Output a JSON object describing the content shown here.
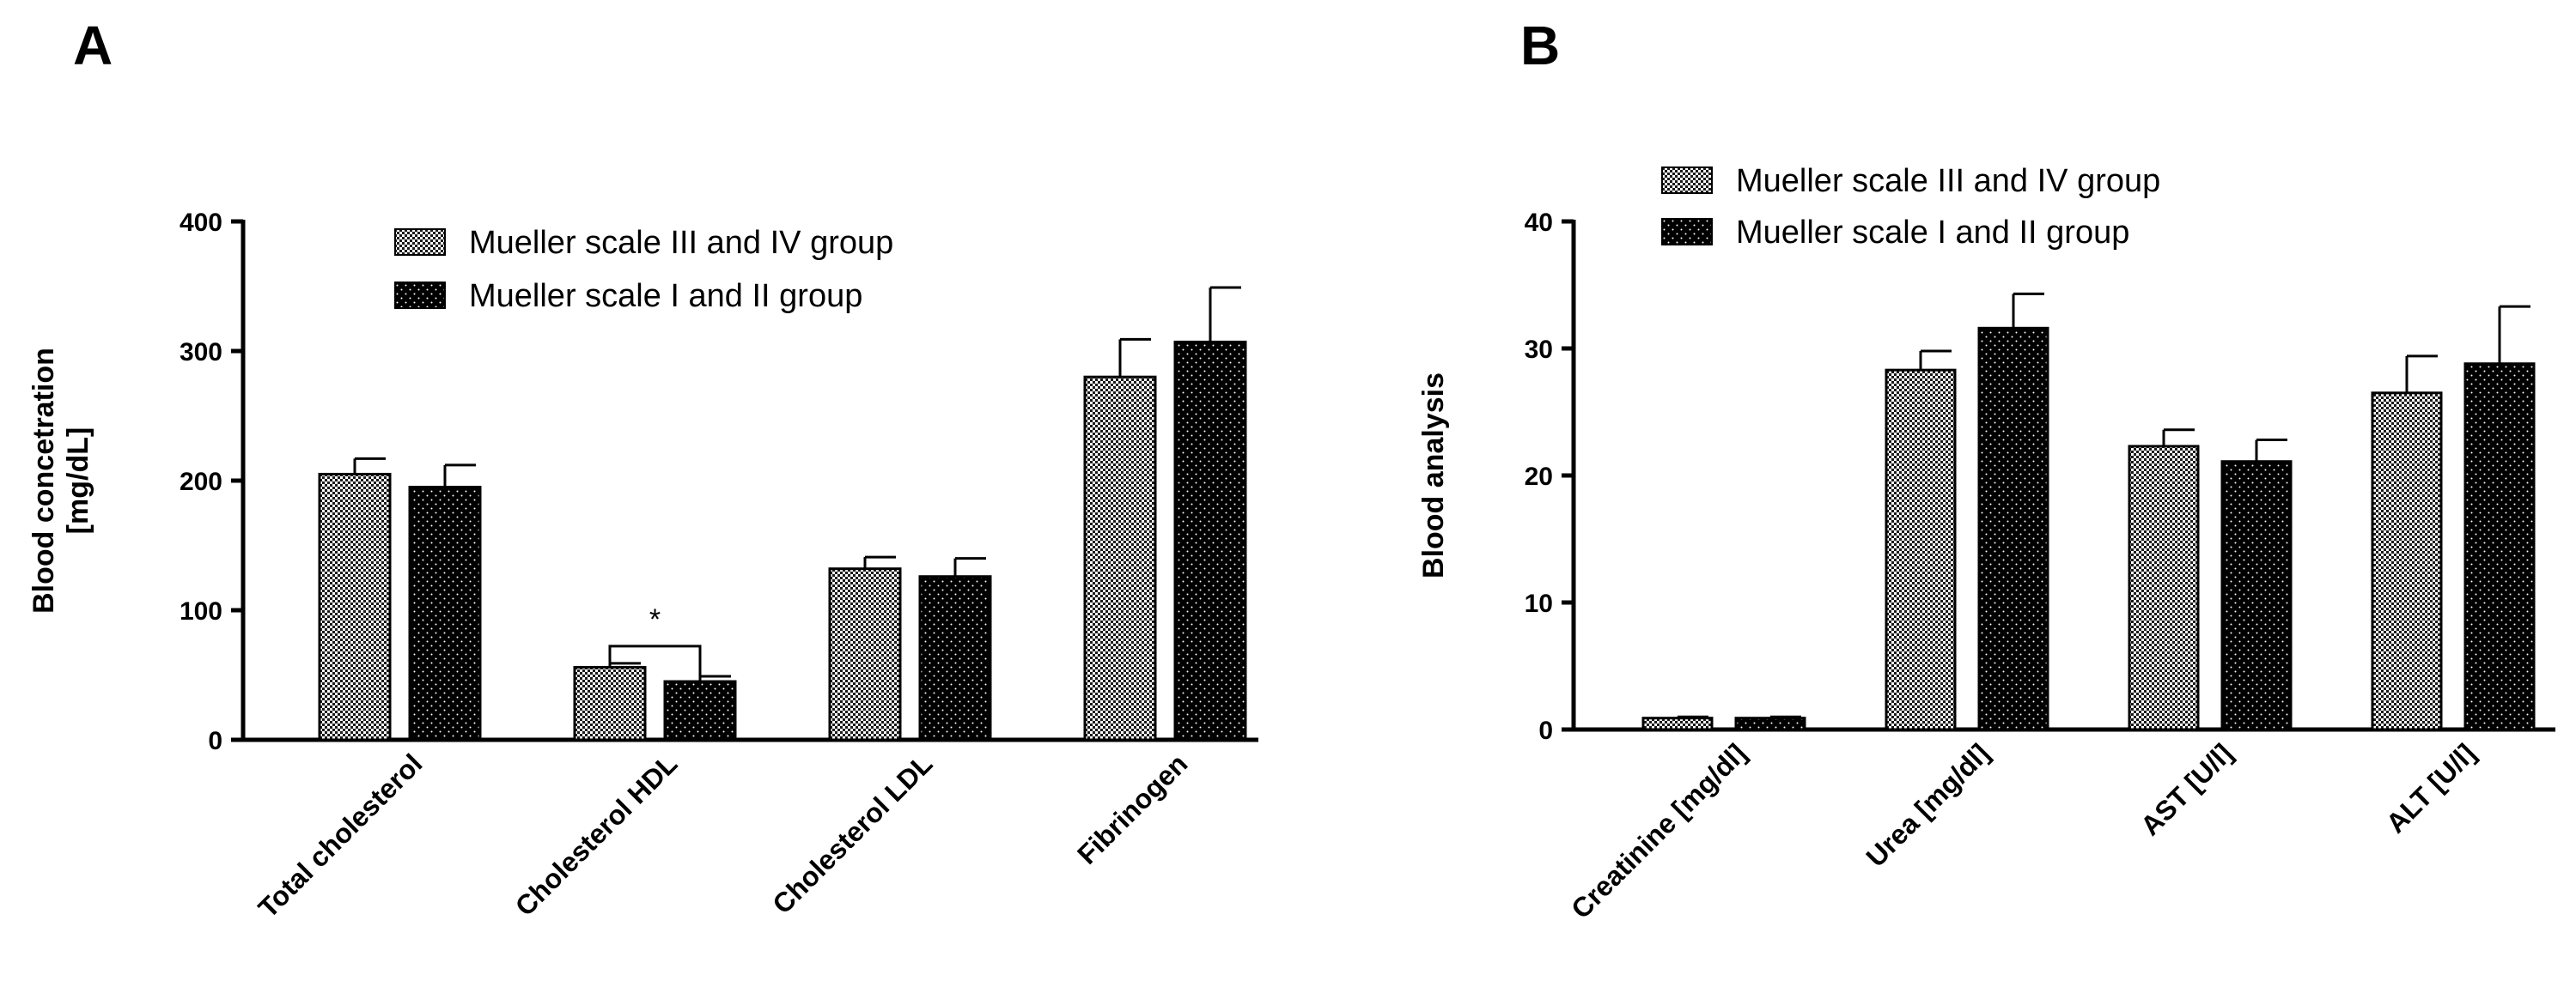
{
  "figure": {
    "panel_a_letter": "A",
    "panel_b_letter": "B"
  },
  "chart_data": [
    {
      "type": "bar",
      "panel": "A",
      "title": "",
      "xlabel": "",
      "ylabel_lines": [
        "Blood concetration",
        "[mg/dL]"
      ],
      "categories": [
        "Total cholesterol",
        "Cholesterol HDL",
        "Cholesterol LDL",
        "Fibrinogen"
      ],
      "ylim": [
        0,
        400
      ],
      "yticks": [
        0,
        100,
        200,
        300,
        400
      ],
      "legend_position": "top-center",
      "series": [
        {
          "name": "Mueller scale III and IV group",
          "pattern": "checker",
          "values": [
            205,
            56,
            132,
            280
          ],
          "errors": [
            12,
            3,
            9,
            29
          ]
        },
        {
          "name": "Mueller scale I and II group",
          "pattern": "dots",
          "values": [
            195,
            45,
            126,
            307
          ],
          "errors": [
            17,
            4,
            14,
            42
          ]
        }
      ],
      "significance": [
        {
          "category_index": 1,
          "label": "*"
        }
      ]
    },
    {
      "type": "bar",
      "panel": "B",
      "title": "",
      "xlabel": "",
      "ylabel_lines": [
        "Blood analysis"
      ],
      "categories": [
        "Creatinine [mg/dl]",
        "Urea [mg/dl]",
        "AST [U/l]",
        "ALT [U/l]"
      ],
      "ylim": [
        0,
        40
      ],
      "yticks": [
        0,
        10,
        20,
        30,
        40
      ],
      "legend_position": "top-center",
      "series": [
        {
          "name": "Mueller scale III and IV group",
          "pattern": "checker",
          "values": [
            0.9,
            28.3,
            22.3,
            26.5
          ],
          "errors": [
            0.1,
            1.5,
            1.3,
            2.9
          ]
        },
        {
          "name": "Mueller scale I and II group",
          "pattern": "dots",
          "values": [
            0.9,
            31.6,
            21.1,
            28.8
          ],
          "errors": [
            0.1,
            2.7,
            1.7,
            4.5
          ]
        }
      ],
      "significance": []
    }
  ]
}
